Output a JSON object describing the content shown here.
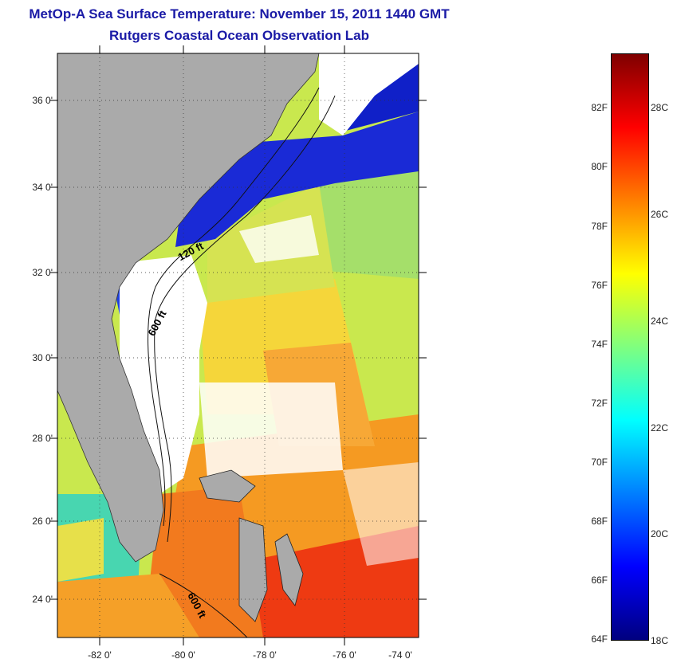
{
  "title": "MetOp-A Sea Surface Temperature:  November 15, 2011 1440 GMT",
  "subtitle": "Rutgers Coastal Ocean Observation Lab",
  "lat_ticks": [
    "36 0'",
    "34 0'",
    "32 0'",
    "30 0'",
    "28 0'",
    "26 0'",
    "24 0'"
  ],
  "lon_ticks": [
    "-82 0'",
    "-80 0'",
    "-78 0'",
    "-76 0'",
    "-74 0'"
  ],
  "contour_labels": [
    "120 ft",
    "600 ft",
    "600 ft"
  ],
  "colorbar": {
    "fahrenheit": [
      "82F",
      "80F",
      "78F",
      "76F",
      "74F",
      "72F",
      "70F",
      "68F",
      "66F",
      "64F"
    ],
    "celsius": [
      "28C",
      "26C",
      "24C",
      "22C",
      "20C",
      "18C"
    ],
    "range_f": [
      64,
      84
    ],
    "colors": [
      "#00007f",
      "#0000ff",
      "#007fff",
      "#00ffff",
      "#7fff7f",
      "#ffff00",
      "#ff7f00",
      "#ff0000",
      "#7f0000"
    ]
  },
  "colors": {
    "land": "#aaaaaa",
    "cloud": "#ffffff",
    "title": "#1a1aa6"
  }
}
